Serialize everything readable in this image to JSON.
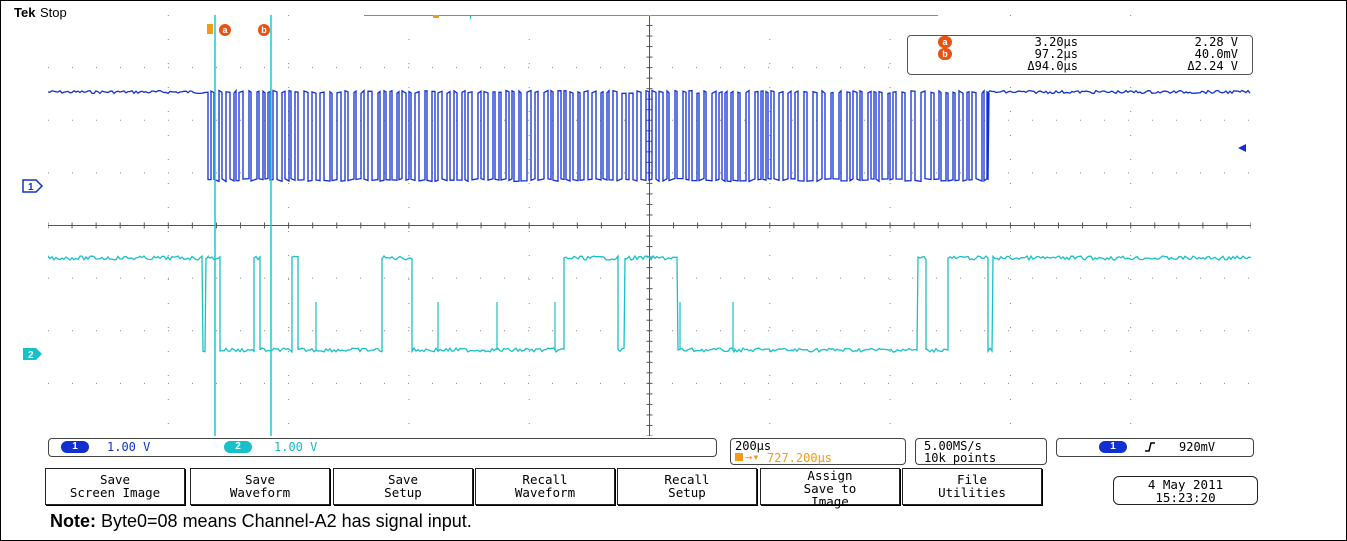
{
  "header": {
    "brand": "Tek",
    "status": "Stop"
  },
  "cursors": {
    "a_label": "a",
    "b_label": "b",
    "a_time": "3.20µs",
    "a_volt": "2.28 V",
    "b_time": "97.2µs",
    "b_volt": "40.0mV",
    "delta_time": "Δ94.0µs",
    "delta_volt": "Δ2.24 V"
  },
  "channels": {
    "ch1_marker": "1",
    "ch2_marker": "2",
    "ch1_scale": "1.00 V",
    "ch2_scale": "1.00 V",
    "ch1_color": "#1030d0",
    "ch2_color": "#18c0c8"
  },
  "timebase": {
    "scale": "200µs",
    "position": "727.200µs",
    "sample_rate": "5.00MS/s",
    "record_length": "10k points"
  },
  "trigger": {
    "source": "1",
    "slope_icon": "rising-edge-icon",
    "level": "920mV"
  },
  "menu": [
    {
      "line1": "Save",
      "line2": "Screen Image"
    },
    {
      "line1": "Save",
      "line2": "Waveform"
    },
    {
      "line1": "Save",
      "line2": "Setup"
    },
    {
      "line1": "Recall",
      "line2": "Waveform"
    },
    {
      "line1": "Recall",
      "line2": "Setup"
    },
    {
      "line1": "Assign",
      "line2": "Save to",
      "line3": "Image"
    },
    {
      "line1": "File",
      "line2": "Utilities"
    }
  ],
  "datetime": {
    "date": "4 May 2011",
    "time": "15:23:20"
  },
  "note": {
    "label": "Note:",
    "text": " Byte0=08 means Channel-A2 has signal input."
  }
}
